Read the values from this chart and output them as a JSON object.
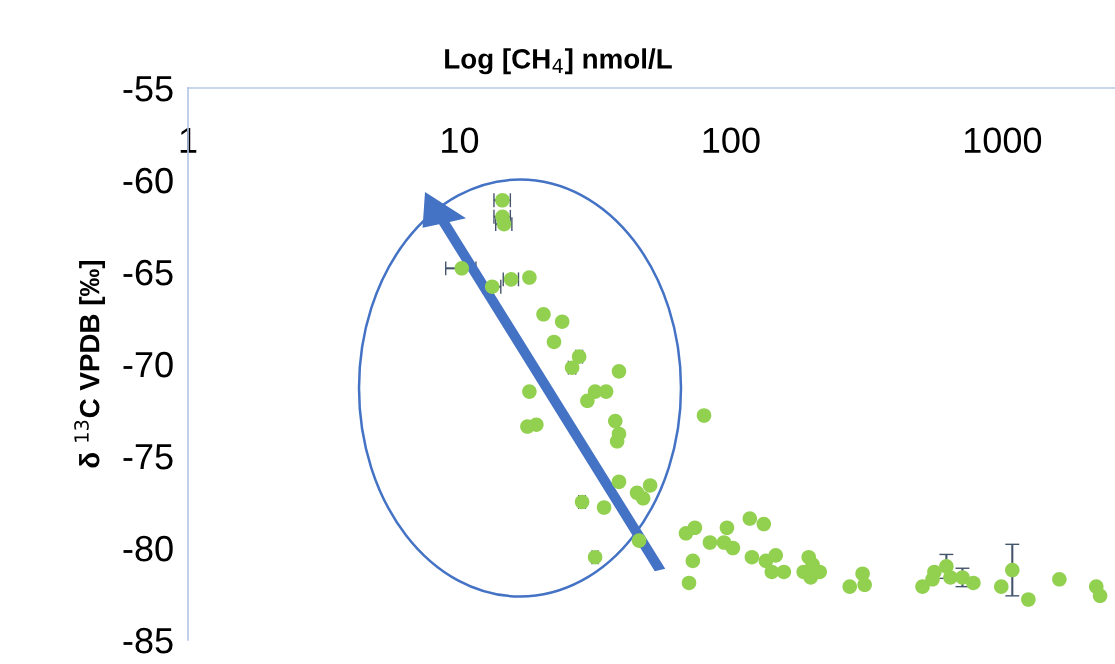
{
  "chart_data": {
    "type": "scatter",
    "xlabel": "Log [CH$_{4}$] nmol/L",
    "ylabel": "δ $^{13}$C VPDB [‰]",
    "log": "x",
    "xlim": [
      1,
      2600
    ],
    "xticks": [
      1,
      10,
      100,
      1000
    ],
    "ylim": [
      -85,
      -55
    ],
    "yticks": [
      -55,
      -60,
      -65,
      -70,
      -75,
      -80,
      -85
    ],
    "grid": false,
    "legend": false,
    "marker": "circle",
    "series": [
      {
        "color": "#92d050",
        "x": [
          14.4,
          14.4,
          14.6,
          10.2,
          13.2,
          15.5,
          18.1,
          20.4,
          23.9,
          22.3,
          27.6,
          26.0,
          38.7,
          18.1,
          31.6,
          34.7,
          29.6,
          37.5,
          17.8,
          19.2,
          38.7,
          38.1,
          38.7,
          50.4,
          45.1,
          47.5,
          28.3,
          34.1,
          45.9,
          31.6,
          68.3,
          73.7,
          72.4,
          70.1,
          79.6,
          83.7,
          94.3,
          101.7,
          96.7,
          117.4,
          132.2,
          119.5,
          134.6,
          146.3,
          141.5,
          156.7,
          193.5,
          185.4,
          196.8,
          212.4,
          200,
          274,
          305.6,
          311,
          508,
          553,
          562,
          622,
          644,
          713,
          782,
          991,
          1088,
          1247,
          1622,
          2218,
          2291
        ],
        "values": [
          -61.1,
          -62.0,
          -62.4,
          -64.8,
          -65.8,
          -65.4,
          -65.3,
          -67.3,
          -67.7,
          -68.8,
          -69.6,
          -70.2,
          -70.4,
          -71.5,
          -71.5,
          -71.5,
          -72.0,
          -73.1,
          -73.4,
          -73.3,
          -73.8,
          -74.2,
          -76.4,
          -76.6,
          -77.0,
          -77.3,
          -77.5,
          -77.8,
          -79.6,
          -80.5,
          -79.2,
          -78.9,
          -80.7,
          -81.9,
          -72.8,
          -79.7,
          -79.7,
          -80.0,
          -78.9,
          -78.4,
          -78.7,
          -80.5,
          -80.7,
          -80.4,
          -81.3,
          -81.3,
          -80.5,
          -81.3,
          -81.6,
          -81.3,
          -80.9,
          -82.1,
          -81.4,
          -82.0,
          -82.1,
          -81.7,
          -81.3,
          -81.0,
          -81.6,
          -81.6,
          -81.9,
          -82.1,
          -81.2,
          -82.8,
          -81.7,
          -82.1,
          -82.6
        ],
        "errors": [
          null,
          null,
          null,
          null,
          null,
          null,
          null,
          null,
          null,
          null,
          null,
          null,
          null,
          null,
          null,
          null,
          null,
          null,
          null,
          null,
          null,
          null,
          null,
          null,
          null,
          null,
          null,
          null,
          null,
          null,
          null,
          null,
          null,
          null,
          null,
          null,
          null,
          null,
          null,
          null,
          null,
          null,
          null,
          null,
          null,
          null,
          null,
          null,
          null,
          null,
          null,
          null,
          null,
          null,
          null,
          null,
          null,
          0.65,
          null,
          0.5,
          null,
          null,
          1.4,
          null,
          null,
          null,
          null
        ],
        "xerrors": [
          1.0,
          1.0,
          1.0,
          1.3,
          1.0,
          1.0,
          null,
          null,
          null,
          null,
          0.8,
          0.8,
          null,
          null,
          null,
          null,
          null,
          null,
          null,
          null,
          null,
          null,
          null,
          null,
          null,
          null,
          0.8,
          null,
          null,
          0.8,
          null,
          null,
          null,
          null,
          null,
          null,
          null,
          null,
          null,
          null,
          null,
          null,
          null,
          null,
          null,
          null,
          null,
          null,
          null,
          null,
          null,
          null,
          null,
          null,
          null,
          null,
          null,
          null,
          null,
          null,
          null,
          null,
          null,
          null,
          null,
          null,
          null
        ]
      }
    ]
  }
}
